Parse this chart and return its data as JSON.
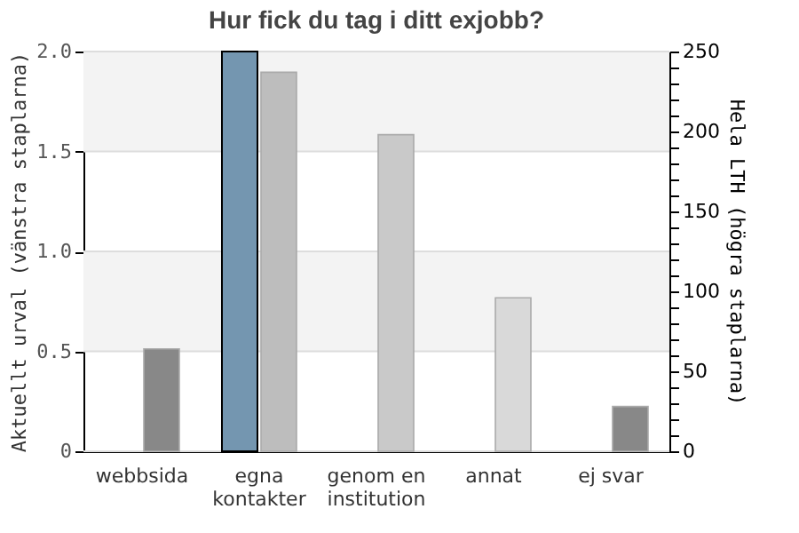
{
  "chart_data": {
    "type": "bar",
    "title": "Hur fick du tag i ditt exjobb?",
    "ylabel": "Aktuellt urval (vänstra staplarna)",
    "y2label": "Hela LTH (högra staplarna)",
    "categories": [
      "webbsida",
      "egna kontakter",
      "genom en institution",
      "annat",
      "ej svar"
    ],
    "series": [
      {
        "values": [
          null,
          2,
          null,
          null,
          null
        ],
        "color": "#7496b0"
      },
      {
        "axis": "y2",
        "values": [
          64,
          237,
          198,
          96,
          28
        ],
        "colors": [
          "#888888",
          "#bdbdbd",
          "#c9c9c9",
          "#d9d9d9",
          "#888888"
        ]
      }
    ],
    "ylim": [
      0,
      2
    ],
    "yticks": [
      0,
      {
        "value": 0.5,
        "label": "0.5"
      },
      {
        "value": 1,
        "label": "1.0"
      },
      {
        "value": 1.5,
        "label": "1.5"
      },
      {
        "value": 2,
        "label": "2.0"
      }
    ],
    "y2lim": [
      0,
      250
    ],
    "y2ticks": [
      0,
      {
        "value": 10,
        "label": null
      },
      {
        "value": 20,
        "label": null
      },
      {
        "value": 30,
        "label": null
      },
      {
        "value": 40,
        "label": null
      },
      50,
      {
        "value": 60,
        "label": null
      },
      {
        "value": 70,
        "label": null
      },
      {
        "value": 80,
        "label": null
      },
      {
        "value": 90,
        "label": null
      },
      100,
      {
        "value": 110,
        "label": null
      },
      {
        "value": 120,
        "label": null
      },
      {
        "value": 130,
        "label": null
      },
      {
        "value": 140,
        "label": null
      },
      150,
      {
        "value": 160,
        "label": null
      },
      {
        "value": 170,
        "label": null
      },
      {
        "value": 180,
        "label": null
      },
      {
        "value": 190,
        "label": null
      },
      200,
      {
        "value": 210,
        "label": null
      },
      {
        "value": 220,
        "label": null
      },
      {
        "value": 230,
        "label": null
      },
      {
        "value": 240,
        "label": null
      },
      250
    ],
    "bands": [
      {
        "axis": "y",
        "from": 1.5,
        "to": 2,
        "color": "#f3f3f3"
      },
      {
        "axis": "y",
        "from": 0.5,
        "to": 1,
        "color": "#f3f3f3"
      }
    ],
    "grid": "y"
  }
}
